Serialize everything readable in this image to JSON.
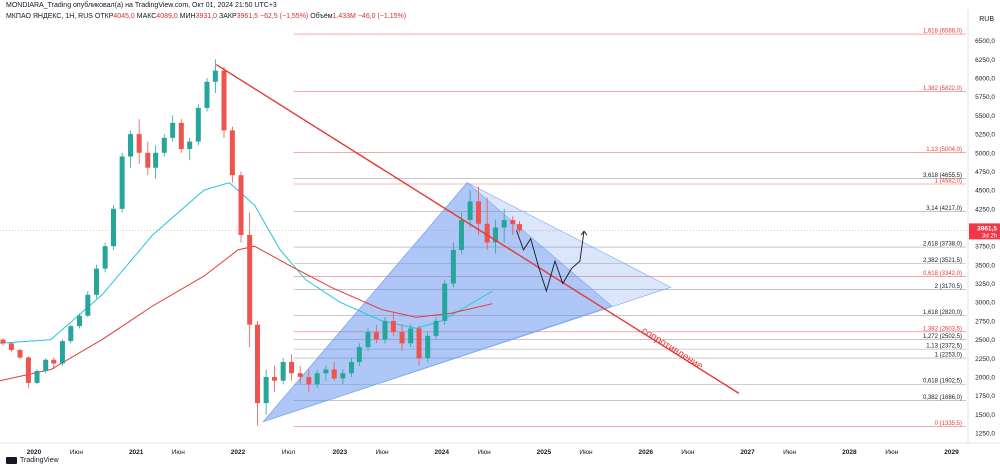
{
  "header": {
    "publisher": "MONDIARA_Trading опубликовал(а) на TradingView.com, Окт 01, 2024 21:50 UTC+3"
  },
  "legend": {
    "symbol": "МКПАО ЯНДЕКС, 1Н, RUS",
    "open_label": "ОТКР",
    "open": "4045,0",
    "high_label": "МАКС",
    "high": "4089,0",
    "low_label": "МИН",
    "low": "3931,0",
    "close_label": "ЗАКР",
    "close": "3961,5",
    "change": "−62,5 (−1,55%)",
    "volume_label": "Объём",
    "volume": "1,433M",
    "volume_change": "−46,0 (−1,15%)"
  },
  "currency": "RUB",
  "branding": "TradingView",
  "price_badge": {
    "price": "3961,5",
    "time": "3d 2h",
    "color": "#f23645"
  },
  "colors": {
    "resistance": "#e53935",
    "ma_blue": "#26c6da",
    "ma_red": "#e53935",
    "candle_up": "#26a69a",
    "candle_down": "#ef5350",
    "fib_text": "#131722",
    "fib_text_red": "#e53935",
    "wedge_fill": "#5b8def",
    "projection": "#131722"
  },
  "chart_data": {
    "type": "candlestick",
    "instrument": "МКПАО ЯНДЕКС",
    "timeframe": "1Н",
    "ylim": [
      1250,
      6750
    ],
    "y_ticks": [
      1250,
      1500,
      1750,
      2000,
      2250,
      2500,
      2750,
      3000,
      3250,
      3500,
      3750,
      4000,
      4250,
      4500,
      4750,
      5000,
      5250,
      5500,
      5750,
      6000,
      6250,
      6500
    ],
    "y_tick_labels": [
      "1250,0",
      "1500,0",
      "1750,0",
      "2000,0",
      "2250,0",
      "2500,0",
      "2750,0",
      "3000,0",
      "3250,0",
      "3500,0",
      "3750,0",
      "4000,0",
      "4250,0",
      "4500,0",
      "4750,0",
      "5000,0",
      "5250,0",
      "5500,0",
      "5750,0",
      "6000,0",
      "6250,0",
      "6500,0"
    ],
    "x_ticks": [
      "2020",
      "Июн",
      "2021",
      "Июн",
      "2022",
      "Июл",
      "2023",
      "Июн",
      "2024",
      "Июн",
      "2025",
      "Июн",
      "2026",
      "Июн",
      "2027",
      "Июн",
      "2028",
      "Июн",
      "2029"
    ],
    "x_tick_dates": [
      "2020-01-01",
      "2020-06-01",
      "2021-01-01",
      "2021-06-01",
      "2022-01-01",
      "2022-07-01",
      "2023-01-01",
      "2023-06-01",
      "2024-01-01",
      "2024-06-01",
      "2025-01-01",
      "2025-06-01",
      "2026-01-01",
      "2026-06-01",
      "2027-01-01",
      "2027-06-01",
      "2028-01-01",
      "2028-06-01",
      "2029-01-01"
    ],
    "x_range": [
      "2019-09-01",
      "2029-03-01"
    ],
    "candles": [
      [
        "2019-09-01",
        2500,
        2520,
        2420,
        2450
      ],
      [
        "2019-10-01",
        2450,
        2460,
        2330,
        2360
      ],
      [
        "2019-11-01",
        2360,
        2380,
        2240,
        2260
      ],
      [
        "2019-12-01",
        2260,
        2280,
        1850,
        1920
      ],
      [
        "2020-01-01",
        1920,
        2100,
        1900,
        2080
      ],
      [
        "2020-02-01",
        2080,
        2250,
        2050,
        2230
      ],
      [
        "2020-03-01",
        2230,
        2260,
        2100,
        2180
      ],
      [
        "2020-04-01",
        2180,
        2500,
        2150,
        2480
      ],
      [
        "2020-05-01",
        2480,
        2700,
        2450,
        2680
      ],
      [
        "2020-06-01",
        2680,
        2850,
        2650,
        2820
      ],
      [
        "2020-07-01",
        2820,
        3150,
        2800,
        3100
      ],
      [
        "2020-08-01",
        3100,
        3500,
        3050,
        3450
      ],
      [
        "2020-09-01",
        3450,
        3800,
        3400,
        3750
      ],
      [
        "2020-10-01",
        3750,
        4300,
        3700,
        4250
      ],
      [
        "2020-11-01",
        4250,
        5000,
        4200,
        4950
      ],
      [
        "2020-12-01",
        4950,
        5300,
        4800,
        5250
      ],
      [
        "2021-01-01",
        5250,
        5450,
        4850,
        5000
      ],
      [
        "2021-02-01",
        5000,
        5150,
        4700,
        4800
      ],
      [
        "2021-03-01",
        4800,
        5100,
        4650,
        5000
      ],
      [
        "2021-04-01",
        5000,
        5250,
        4950,
        5200
      ],
      [
        "2021-05-01",
        5200,
        5500,
        5150,
        5400
      ],
      [
        "2021-06-01",
        5400,
        5450,
        5000,
        5050
      ],
      [
        "2021-07-01",
        5050,
        5200,
        4900,
        5150
      ],
      [
        "2021-08-01",
        5150,
        5650,
        5100,
        5600
      ],
      [
        "2021-09-01",
        5600,
        6000,
        5550,
        5950
      ],
      [
        "2021-10-01",
        5950,
        6250,
        5800,
        6100
      ],
      [
        "2021-11-01",
        6100,
        6150,
        5200,
        5300
      ],
      [
        "2021-12-01",
        5300,
        5350,
        4600,
        4700
      ],
      [
        "2022-01-01",
        4700,
        4750,
        3800,
        3900
      ],
      [
        "2022-02-01",
        3900,
        4200,
        2400,
        2700
      ],
      [
        "2022-03-01",
        2700,
        2750,
        1350,
        1650
      ],
      [
        "2022-04-01",
        1650,
        2100,
        1500,
        2000
      ],
      [
        "2022-05-01",
        2000,
        2150,
        1800,
        1950
      ],
      [
        "2022-06-01",
        1950,
        2250,
        1900,
        2200
      ],
      [
        "2022-07-01",
        2200,
        2300,
        1950,
        2050
      ],
      [
        "2022-08-01",
        2050,
        2150,
        1900,
        2000
      ],
      [
        "2022-09-01",
        2000,
        2100,
        1800,
        1900
      ],
      [
        "2022-10-01",
        1900,
        2100,
        1850,
        2050
      ],
      [
        "2022-11-01",
        2050,
        2150,
        1950,
        2100
      ],
      [
        "2022-12-01",
        2100,
        2200,
        1950,
        1980
      ],
      [
        "2023-01-01",
        1980,
        2100,
        1900,
        2050
      ],
      [
        "2023-02-01",
        2050,
        2250,
        2000,
        2200
      ],
      [
        "2023-03-01",
        2200,
        2450,
        2150,
        2400
      ],
      [
        "2023-04-01",
        2400,
        2650,
        2350,
        2600
      ],
      [
        "2023-05-01",
        2600,
        2700,
        2450,
        2500
      ],
      [
        "2023-06-01",
        2500,
        2800,
        2450,
        2750
      ],
      [
        "2023-07-01",
        2750,
        2850,
        2550,
        2600
      ],
      [
        "2023-08-01",
        2600,
        2700,
        2350,
        2450
      ],
      [
        "2023-09-01",
        2450,
        2700,
        2400,
        2650
      ],
      [
        "2023-10-01",
        2650,
        2680,
        2150,
        2250
      ],
      [
        "2023-11-01",
        2250,
        2600,
        2200,
        2550
      ],
      [
        "2023-12-01",
        2550,
        2800,
        2500,
        2750
      ],
      [
        "2024-01-01",
        2750,
        3300,
        2700,
        3250
      ],
      [
        "2024-02-01",
        3250,
        3800,
        3200,
        3700
      ],
      [
        "2024-03-01",
        3700,
        4200,
        3650,
        4100
      ],
      [
        "2024-04-01",
        4100,
        4500,
        4000,
        4350
      ],
      [
        "2024-05-01",
        4350,
        4550,
        3900,
        4050
      ],
      [
        "2024-06-01",
        4050,
        4400,
        3700,
        3800
      ],
      [
        "2024-07-01",
        3800,
        4100,
        3650,
        4000
      ],
      [
        "2024-08-01",
        4000,
        4250,
        3800,
        4100
      ],
      [
        "2024-09-01",
        4100,
        4150,
        3900,
        4045
      ],
      [
        "2024-09-25",
        4045,
        4089,
        3931,
        3961.5
      ]
    ],
    "moving_averages": [
      {
        "color": "#26c6da",
        "points": [
          [
            "2019-09-01",
            2450
          ],
          [
            "2020-03-01",
            2500
          ],
          [
            "2020-09-01",
            3100
          ],
          [
            "2021-03-01",
            3900
          ],
          [
            "2021-09-01",
            4500
          ],
          [
            "2021-12-01",
            4600
          ],
          [
            "2022-03-01",
            4300
          ],
          [
            "2022-06-01",
            3700
          ],
          [
            "2022-09-01",
            3300
          ],
          [
            "2023-01-01",
            3000
          ],
          [
            "2023-06-01",
            2750
          ],
          [
            "2023-10-01",
            2650
          ],
          [
            "2024-01-01",
            2750
          ],
          [
            "2024-04-01",
            2950
          ],
          [
            "2024-07-01",
            3150
          ]
        ]
      },
      {
        "color": "#e53935",
        "points": [
          [
            "2019-09-01",
            1950
          ],
          [
            "2020-03-01",
            2100
          ],
          [
            "2020-09-01",
            2500
          ],
          [
            "2021-03-01",
            2950
          ],
          [
            "2021-09-01",
            3350
          ],
          [
            "2022-01-01",
            3700
          ],
          [
            "2022-03-01",
            3750
          ],
          [
            "2022-07-01",
            3500
          ],
          [
            "2022-12-01",
            3200
          ],
          [
            "2023-06-01",
            2900
          ],
          [
            "2023-10-01",
            2800
          ],
          [
            "2024-02-01",
            2850
          ],
          [
            "2024-07-01",
            2980
          ]
        ]
      }
    ],
    "resistance_line": {
      "label": "сопротивление",
      "from": [
        "2021-10-15",
        6180
      ],
      "to": [
        "2026-12-01",
        1780
      ]
    },
    "fib_levels": [
      {
        "ratio": "0",
        "value": 1335.5,
        "label": "0 (1335,5)",
        "red": true
      },
      {
        "ratio": "0,382",
        "value": 1686.0,
        "label": "0,382 (1686,0)",
        "red": false
      },
      {
        "ratio": "0,618",
        "value": 1902.5,
        "label": "0,618 (1902,5)",
        "red": false
      },
      {
        "ratio": "1",
        "value": 2253.0,
        "label": "1 (2253,0)",
        "red": false
      },
      {
        "ratio": "1,13",
        "value": 2372.5,
        "label": "1,13 (2372,5)",
        "red": false
      },
      {
        "ratio": "1,272",
        "value": 2502.5,
        "label": "1,272 (2502,5)",
        "red": false
      },
      {
        "ratio": "1,382",
        "value": 2603.5,
        "label": "1,382 (2603,5)",
        "red": true
      },
      {
        "ratio": "1,618",
        "value": 2820.0,
        "label": "1,618 (2820,0)",
        "red": false
      },
      {
        "ratio": "2",
        "value": 3170.5,
        "label": "2 (3170,5)",
        "red": false
      },
      {
        "ratio": "0,618",
        "value": 3342.0,
        "label": "0,618 (3342,0)",
        "red": true
      },
      {
        "ratio": "2,382",
        "value": 3521.5,
        "label": "2,382 (3521,5)",
        "red": false
      },
      {
        "ratio": "2,618",
        "value": 3738.0,
        "label": "2,618 (3738,0)",
        "red": false
      },
      {
        "ratio": "3,14",
        "value": 4217.0,
        "label": "3,14 (4217,0)",
        "red": false
      },
      {
        "ratio": "1",
        "value": 4582.0,
        "label": "1 (4582,0)",
        "red": true
      },
      {
        "ratio": "3,618",
        "value": 4655.5,
        "label": "3,618 (4655,5)",
        "red": false
      },
      {
        "ratio": "1,13",
        "value": 5004.0,
        "label": "1,13 (5004,0)",
        "red": true
      },
      {
        "ratio": "1,382",
        "value": 5822.0,
        "label": "1,382 (5822,0)",
        "red": true
      },
      {
        "ratio": "1,618",
        "value": 6588.0,
        "label": "1,618 (6588,0)",
        "red": true
      }
    ],
    "wedge": {
      "outer": [
        [
          "2022-04-01",
          1400
        ],
        [
          "2024-04-01",
          4600
        ],
        [
          "2026-04-01",
          3200
        ]
      ],
      "inner": [
        [
          "2022-04-01",
          1400
        ],
        [
          "2024-04-01",
          4600
        ],
        [
          "2025-09-01",
          2950
        ]
      ]
    },
    "projection": [
      [
        "2024-09-25",
        3961.5
      ],
      [
        "2024-10-20",
        3700
      ],
      [
        "2024-11-15",
        3850
      ],
      [
        "2024-12-15",
        3450
      ],
      [
        "2025-01-10",
        3150
      ],
      [
        "2025-02-10",
        3550
      ],
      [
        "2025-03-10",
        3250
      ],
      [
        "2025-04-10",
        3450
      ],
      [
        "2025-05-10",
        3550
      ],
      [
        "2025-05-25",
        3950
      ]
    ]
  }
}
